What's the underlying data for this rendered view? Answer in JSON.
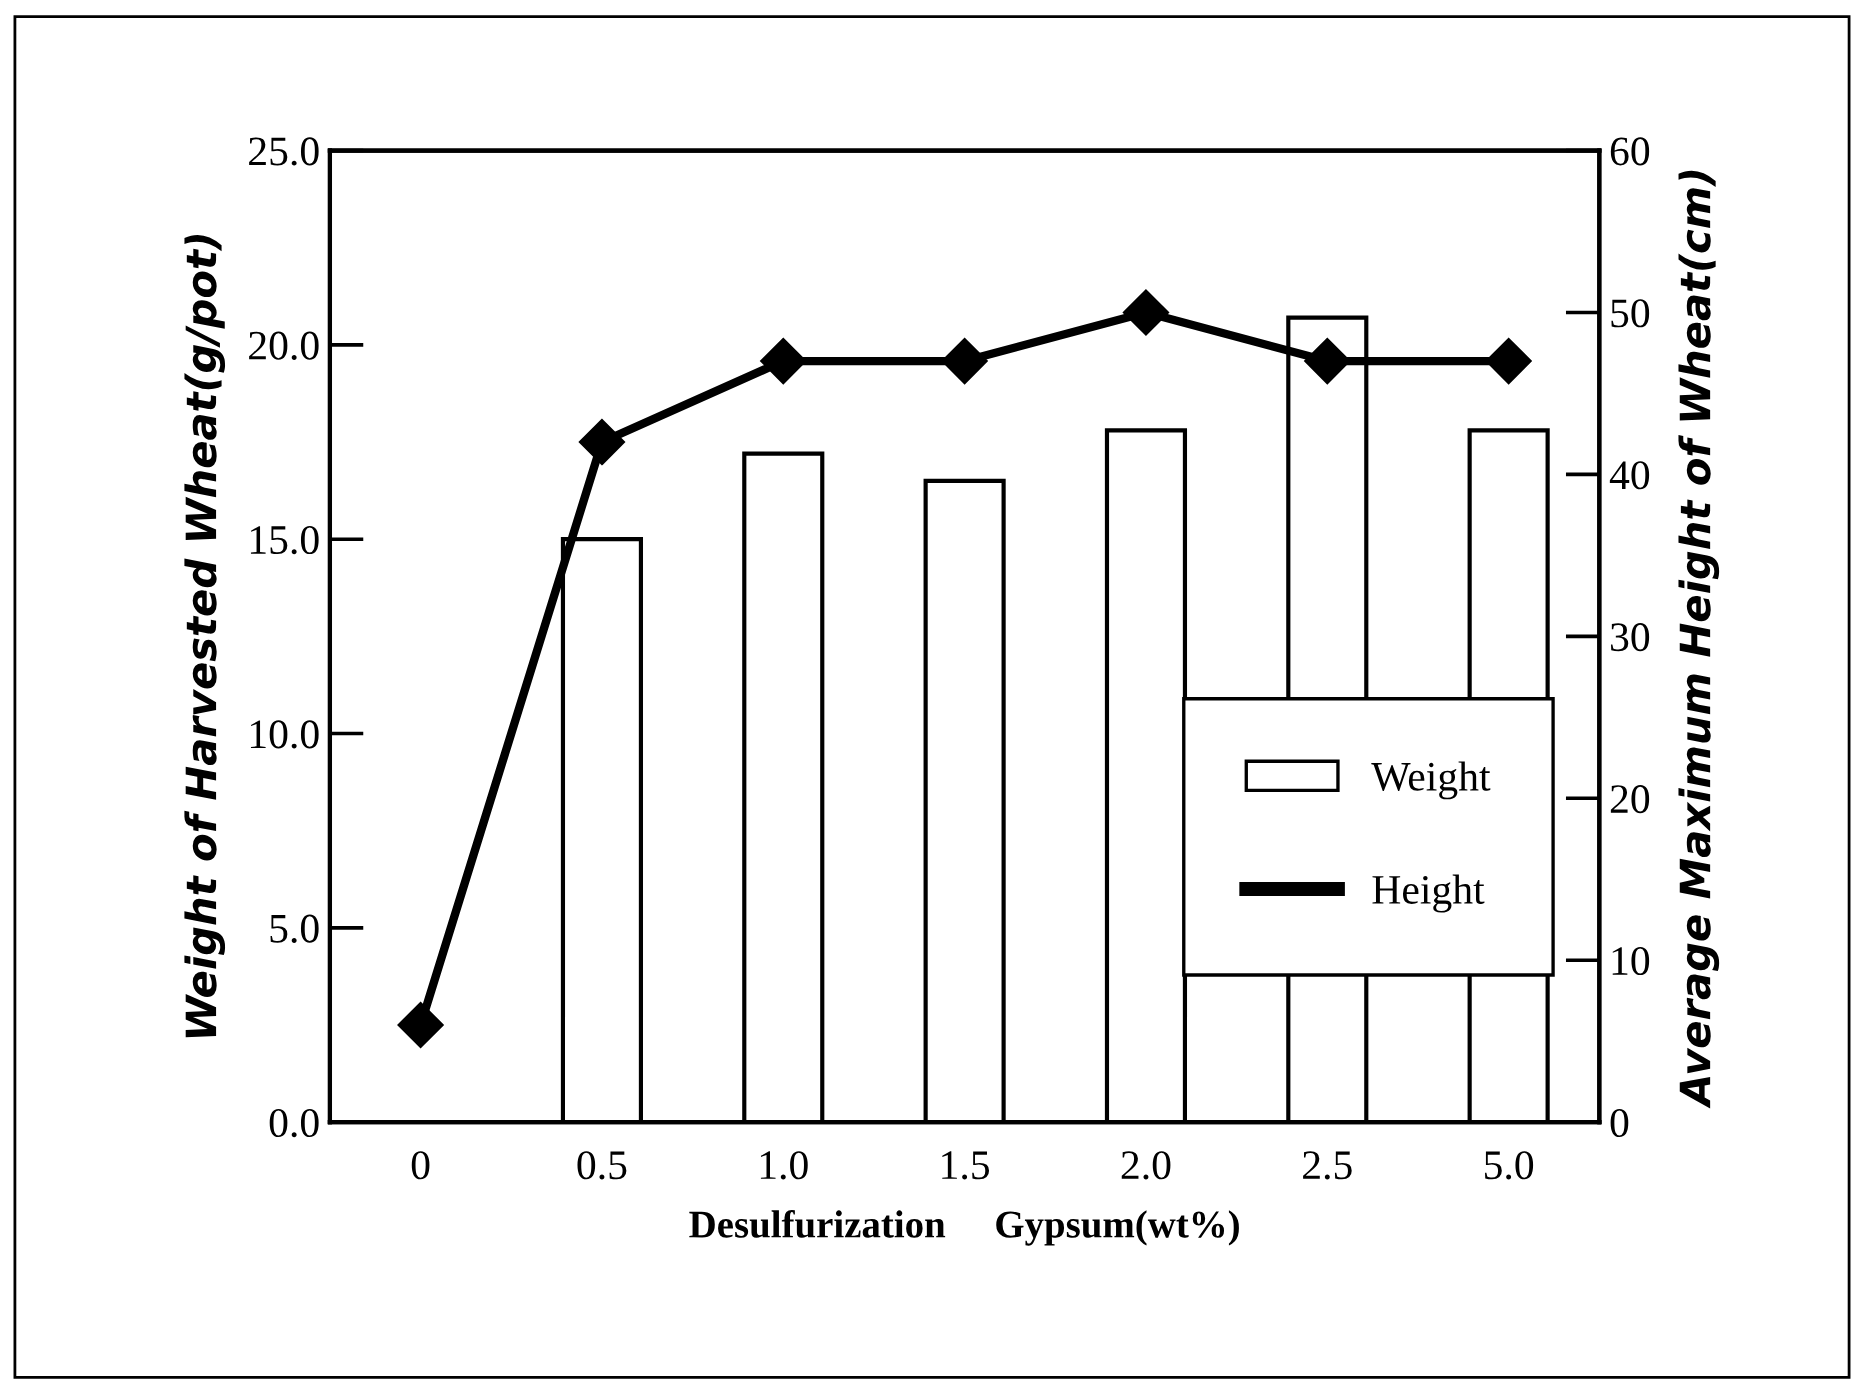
{
  "chart_data": {
    "type": "bar",
    "categories": [
      "0",
      "0.5",
      "1.0",
      "1.5",
      "2.0",
      "2.5",
      "5.0"
    ],
    "xlabel": "Desulfurization     Gypsum(wt%)",
    "ylabel": "Weight of Harvested Wheat(g/pot)",
    "y2label": "Average Maximum Height of Wheat(cm)",
    "series": [
      {
        "name": "Weight",
        "color": "#ffffff",
        "values": [
          null,
          15.0,
          17.2,
          16.5,
          17.8,
          20.7,
          17.8
        ]
      },
      {
        "name": "Height",
        "type": "line",
        "axis": "y2",
        "color": "#000000",
        "values": [
          6,
          42,
          47,
          47,
          50,
          47,
          47
        ]
      }
    ],
    "ylim": [
      0,
      25
    ],
    "yticks": [
      {
        "value": 0,
        "label": "0.0"
      },
      {
        "value": 5,
        "label": "5.0"
      },
      {
        "value": 10,
        "label": "10.0"
      },
      {
        "value": 15,
        "label": "15.0"
      },
      {
        "value": 20,
        "label": "20.0"
      },
      {
        "value": 25,
        "label": "25.0"
      }
    ],
    "y2lim": [
      0,
      60
    ],
    "y2ticks": [
      0,
      10,
      20,
      30,
      40,
      50,
      60
    ],
    "marker": "diamond",
    "line_style": "solid",
    "grid": false,
    "legend": "lower right"
  }
}
